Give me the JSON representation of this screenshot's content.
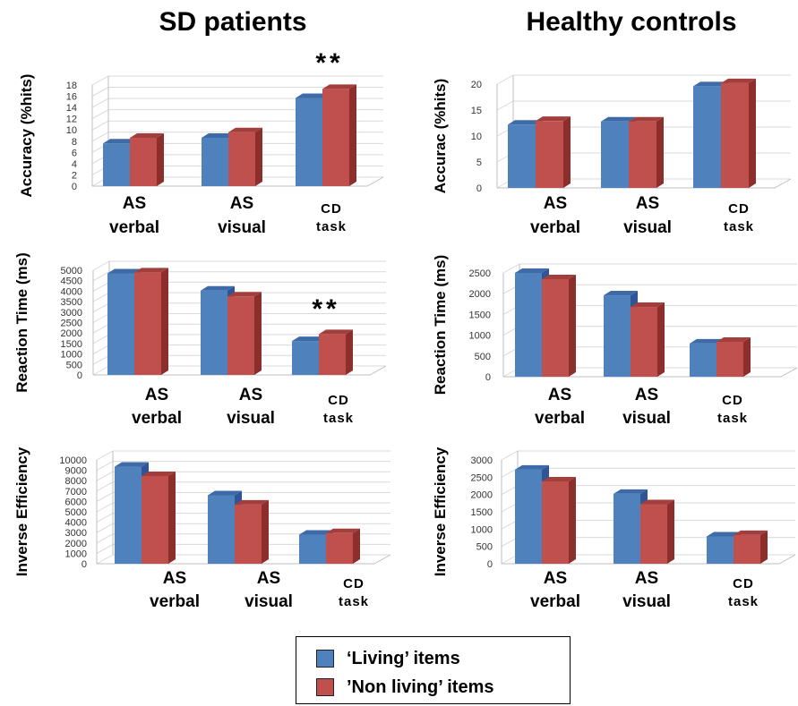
{
  "figure": {
    "column_titles": [
      "SD patients",
      "Healthy controls"
    ]
  },
  "legend": {
    "items": [
      {
        "label": "‘Living’ items",
        "color": "#4F81BD"
      },
      {
        "label": "’Non living’ items",
        "color": "#C0504D"
      }
    ]
  },
  "chart_data": [
    {
      "type": "bar",
      "group": "SD patients",
      "ylabel": "Accuracy (%hits)",
      "ylim": [
        0,
        18
      ],
      "yticks": [
        0,
        2,
        4,
        6,
        8,
        10,
        12,
        14,
        16,
        18
      ],
      "categories": [
        [
          "AS",
          "verbal"
        ],
        [
          "AS",
          "visual"
        ],
        [
          "CD",
          "task"
        ]
      ],
      "series": [
        {
          "name": "‘Living’ items",
          "values": [
            7.6,
            8.6,
            15.7
          ]
        },
        {
          "name": "’Non living’ items",
          "values": [
            8.6,
            9.6,
            17.3
          ]
        }
      ],
      "annotations": [
        {
          "category": 2,
          "text": "**"
        }
      ]
    },
    {
      "type": "bar",
      "group": "Healthy controls",
      "ylabel": "Accurac (%hits)",
      "ylim": [
        0,
        20
      ],
      "yticks": [
        0,
        5,
        10,
        15,
        20
      ],
      "categories": [
        [
          "AS",
          "verbal"
        ],
        [
          "AS",
          "visual"
        ],
        [
          "CD",
          "task"
        ]
      ],
      "series": [
        {
          "name": "‘Living’ items",
          "values": [
            12.2,
            12.8,
            19.6
          ]
        },
        {
          "name": "’Non living’ items",
          "values": [
            12.9,
            12.8,
            20.2
          ]
        }
      ],
      "annotations": []
    },
    {
      "type": "bar",
      "group": "SD patients",
      "ylabel": "Reaction Time (ms)",
      "ylim": [
        0,
        5000
      ],
      "yticks": [
        0,
        500,
        1000,
        1500,
        2000,
        2500,
        3000,
        3500,
        4000,
        4500,
        5000
      ],
      "categories": [
        [
          "AS",
          "verbal"
        ],
        [
          "AS",
          "visual"
        ],
        [
          "CD",
          "task"
        ]
      ],
      "series": [
        {
          "name": "‘Living’ items",
          "values": [
            4850,
            4030,
            1620
          ]
        },
        {
          "name": "’Non living’ items",
          "values": [
            4900,
            3750,
            1950
          ]
        }
      ],
      "annotations": [
        {
          "category": 2,
          "text": "**"
        }
      ]
    },
    {
      "type": "bar",
      "group": "Healthy controls",
      "ylabel": "Reaction Time (ms)",
      "ylim": [
        0,
        2500
      ],
      "yticks": [
        0,
        500,
        1000,
        1500,
        2000,
        2500
      ],
      "categories": [
        [
          "AS",
          "verbal"
        ],
        [
          "AS",
          "visual"
        ],
        [
          "CD",
          "task"
        ]
      ],
      "series": [
        {
          "name": "‘Living’ items",
          "values": [
            2500,
            1960,
            800
          ]
        },
        {
          "name": "’Non living’ items",
          "values": [
            2350,
            1680,
            840
          ]
        }
      ],
      "annotations": []
    },
    {
      "type": "bar",
      "group": "SD patients",
      "ylabel": "Inverse Efficiency",
      "ylim": [
        0,
        10000
      ],
      "yticks": [
        0,
        1000,
        2000,
        3000,
        4000,
        5000,
        6000,
        7000,
        8000,
        9000,
        10000
      ],
      "categories": [
        [
          "AS",
          "verbal"
        ],
        [
          "AS",
          "visual"
        ],
        [
          "CD",
          "task"
        ]
      ],
      "series": [
        {
          "name": "‘Living’ items",
          "values": [
            9350,
            6600,
            2800
          ]
        },
        {
          "name": "’Non living’ items",
          "values": [
            8450,
            5700,
            2950
          ]
        }
      ],
      "annotations": []
    },
    {
      "type": "bar",
      "group": "Healthy controls",
      "ylabel": "Inverse Efficiency",
      "ylim": [
        0,
        3000
      ],
      "yticks": [
        0,
        500,
        1000,
        1500,
        2000,
        2500,
        3000
      ],
      "categories": [
        [
          "AS",
          "verbal"
        ],
        [
          "AS",
          "visual"
        ],
        [
          "CD",
          "task"
        ]
      ],
      "series": [
        {
          "name": "‘Living’ items",
          "values": [
            2720,
            2020,
            790
          ]
        },
        {
          "name": "’Non living’ items",
          "values": [
            2380,
            1720,
            830
          ]
        }
      ],
      "annotations": []
    }
  ]
}
